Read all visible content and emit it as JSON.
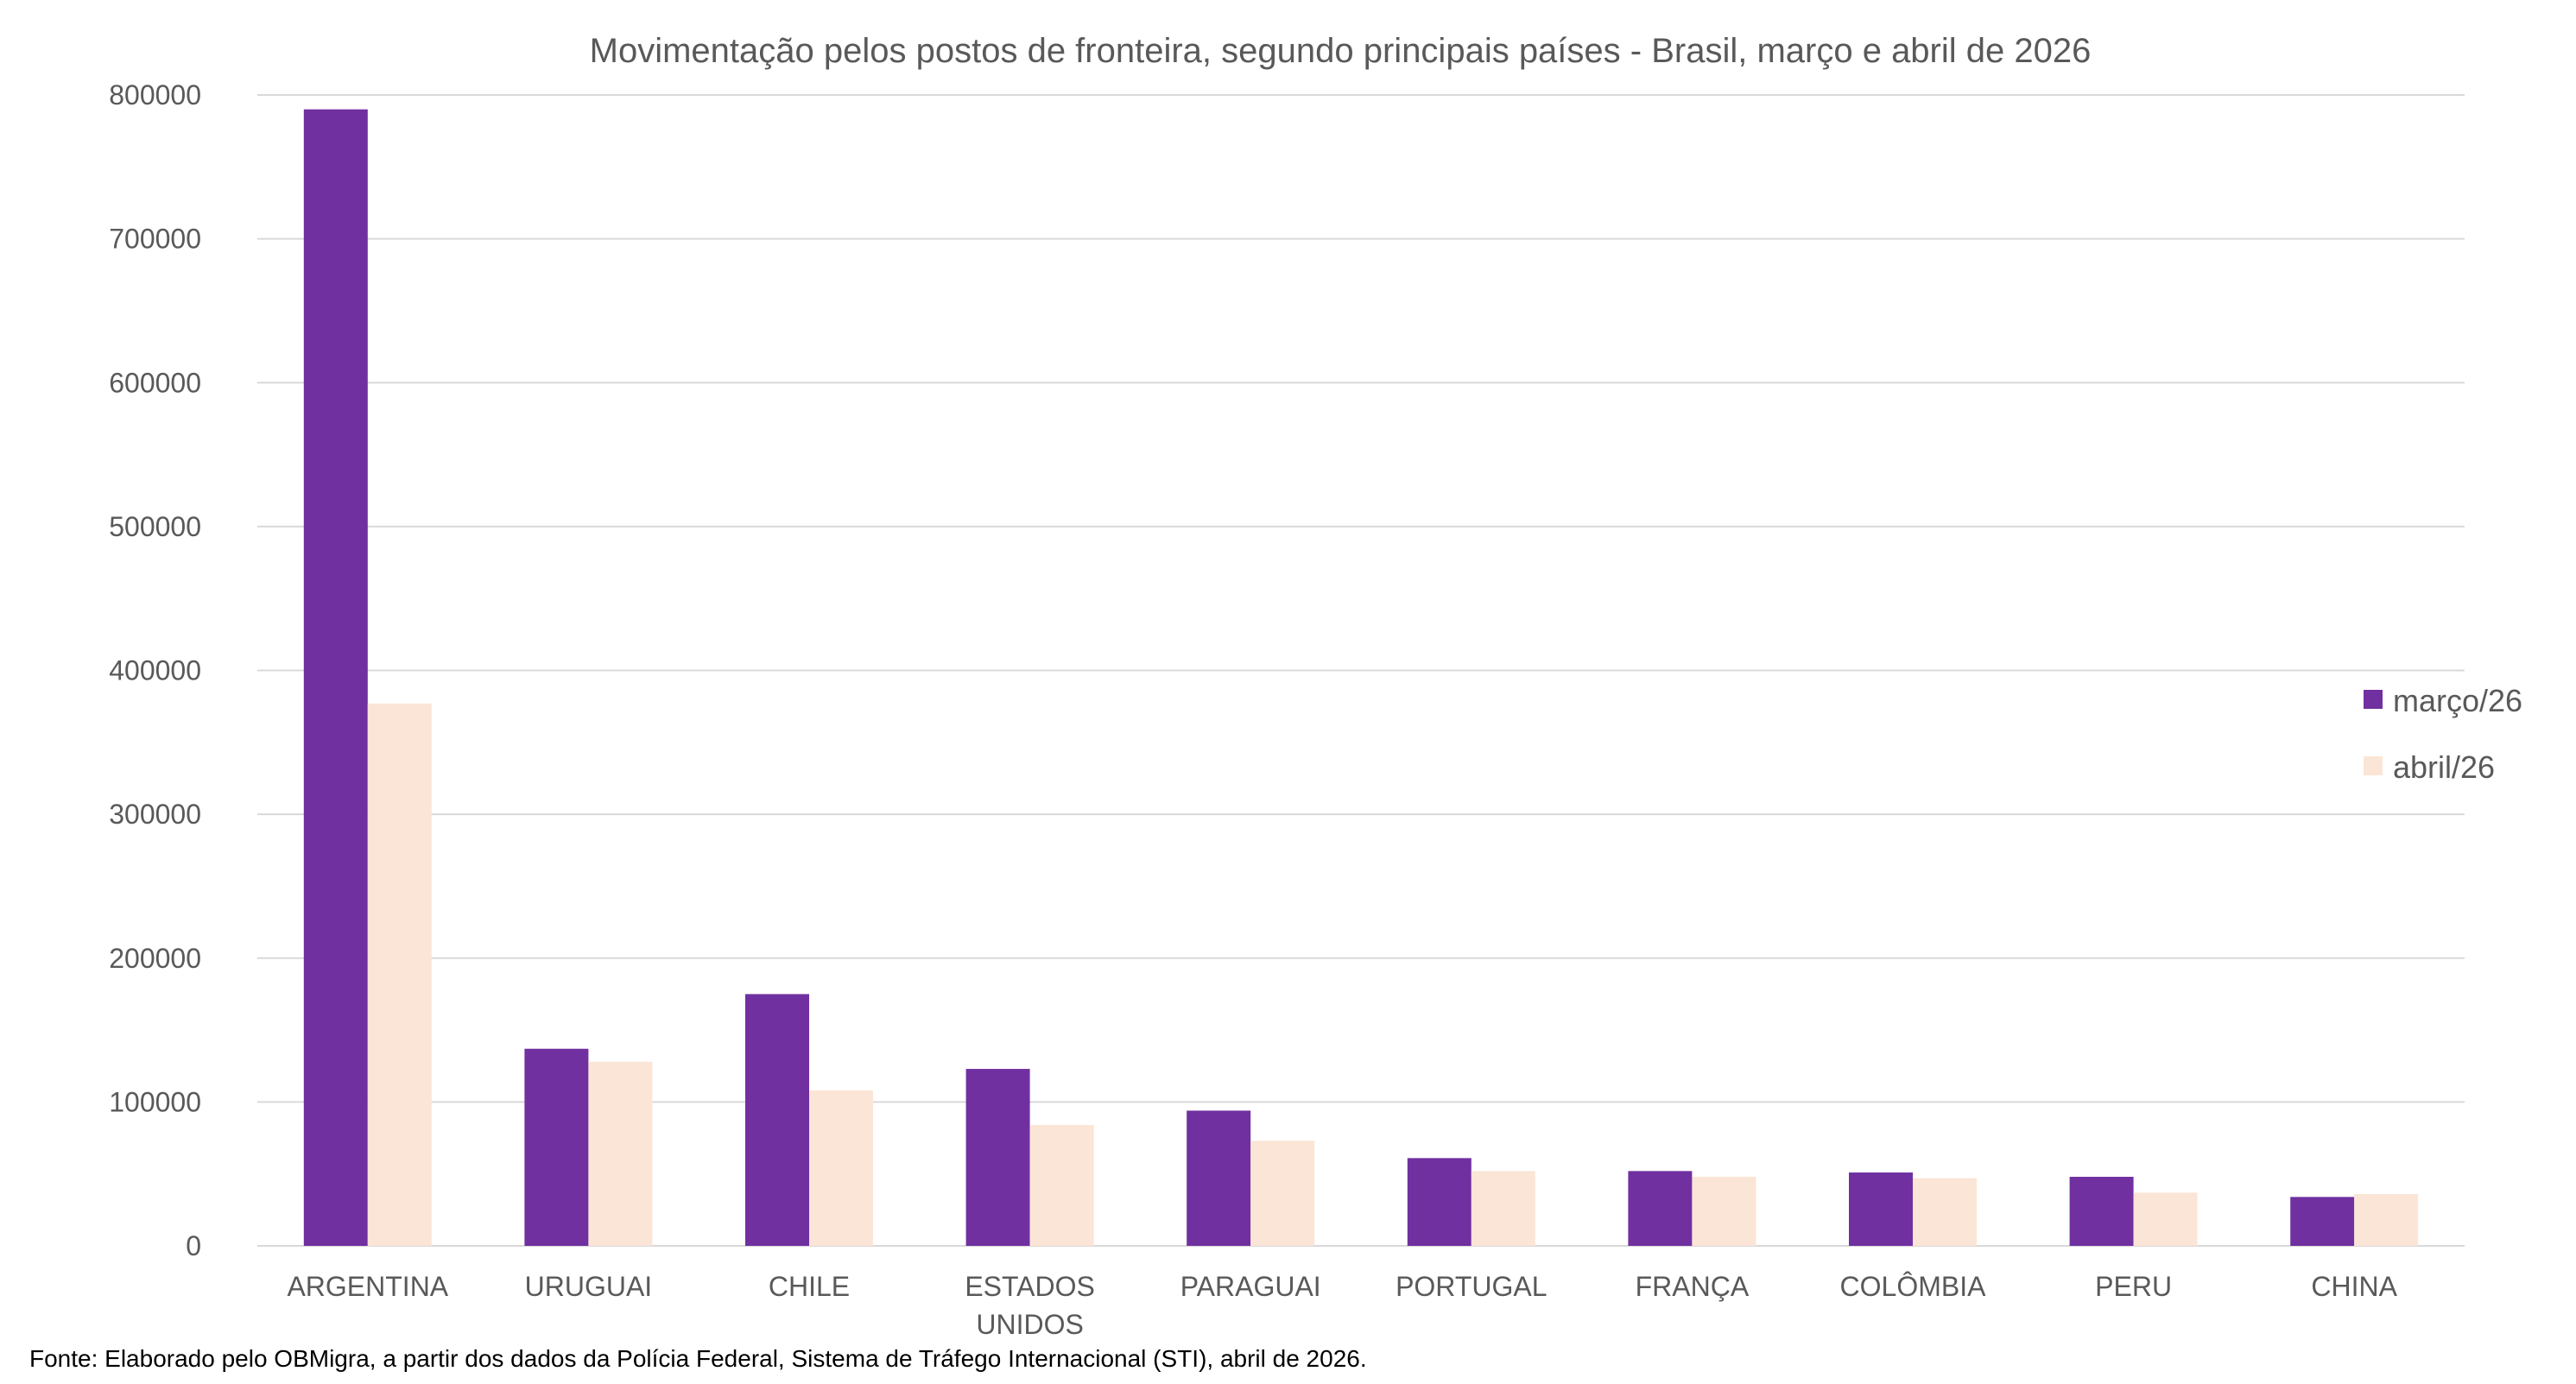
{
  "chart_data": {
    "type": "bar",
    "title": "Movimentação pelos postos de fronteira, segundo principais países - Brasil, março e abril de 2026",
    "categories": [
      [
        "ARGENTINA"
      ],
      [
        "URUGUAI"
      ],
      [
        "CHILE"
      ],
      [
        "ESTADOS",
        "UNIDOS"
      ],
      [
        "PARAGUAI"
      ],
      [
        "PORTUGAL"
      ],
      [
        "FRANÇA"
      ],
      [
        "COLÔMBIA"
      ],
      [
        "PERU"
      ],
      [
        "CHINA"
      ]
    ],
    "series": [
      {
        "name": "março/26",
        "color": "#7030a0",
        "values": [
          790000,
          137000,
          175000,
          123000,
          94000,
          61000,
          52000,
          51000,
          48000,
          34000
        ]
      },
      {
        "name": "abril/26",
        "color": "#fbe5d6",
        "values": [
          377000,
          128000,
          108000,
          84000,
          73000,
          52000,
          48000,
          47000,
          37000,
          36000
        ]
      }
    ],
    "xlabel": "",
    "ylabel": "",
    "ylim": [
      0,
      800000
    ],
    "yticks": [
      "0",
      "100000",
      "200000",
      "300000",
      "400000",
      "500000",
      "600000",
      "700000",
      "800000"
    ],
    "grid": true,
    "legend_position": "right"
  },
  "source_note": "Fonte: Elaborado pelo OBMigra, a partir dos dados da Polícia Federal, Sistema de Tráfego Internacional (STI), abril de 2026."
}
